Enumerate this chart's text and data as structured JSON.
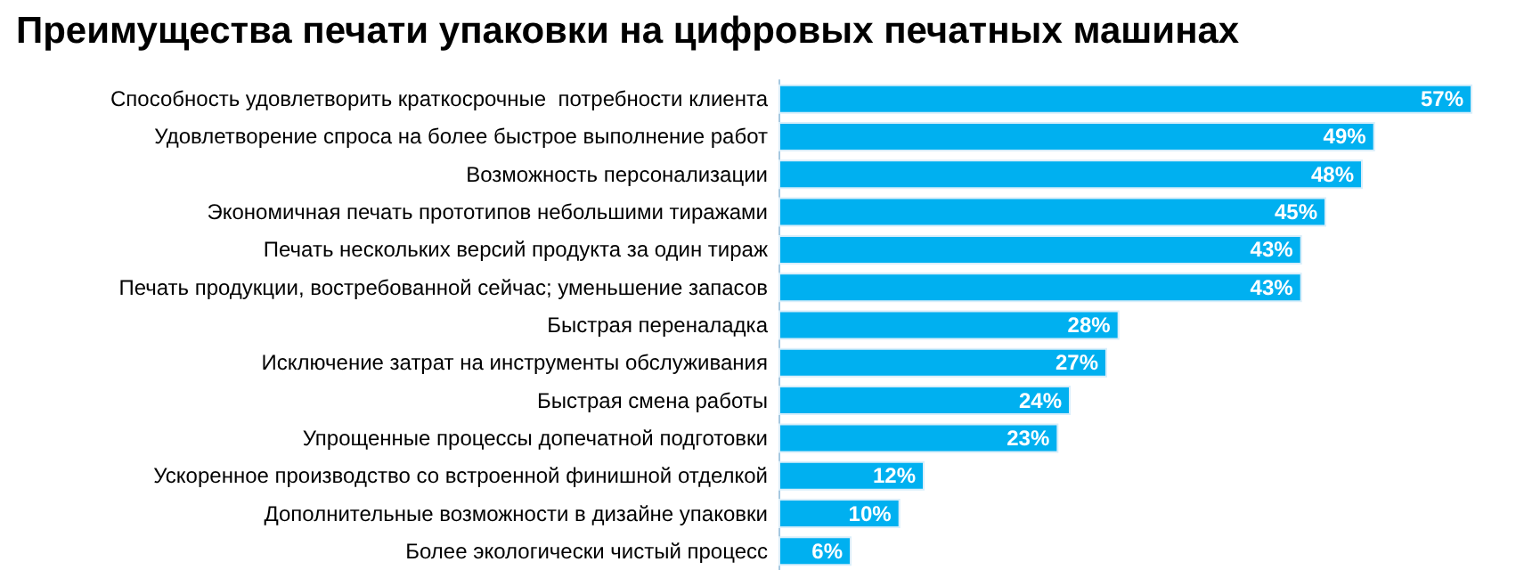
{
  "chart_data": {
    "type": "bar",
    "orientation": "horizontal",
    "title": "Преимущества печати упаковки на цифровых печатных машинах",
    "categories": [
      "Способность удовлетворить краткосрочные  потребности клиента",
      "Удовлетворение спроса на более быстрое выполнение работ",
      "Возможность персонализации",
      "Экономичная печать прототипов небольшими тиражами",
      "Печать нескольких версий продукта за один тираж",
      "Печать продукции, востребованной сейчас; уменьшение запасов",
      "Быстрая переналадка",
      "Исключение затрат на инструменты обслуживания",
      "Быстрая смена работы",
      "Упрощенные процессы допечатной подготовки",
      "Ускоренное производство со встроенной финишной отделкой",
      "Дополнительные возможности в дизайне упаковки",
      "Более экологически чистый процесс"
    ],
    "values": [
      57,
      49,
      48,
      45,
      43,
      43,
      28,
      27,
      24,
      23,
      12,
      10,
      6
    ],
    "value_labels": [
      "57%",
      "49%",
      "48%",
      "45%",
      "43%",
      "43%",
      "28%",
      "27%",
      "24%",
      "23%",
      "12%",
      "10%",
      "6%"
    ],
    "color": "#00b0f0"
  }
}
